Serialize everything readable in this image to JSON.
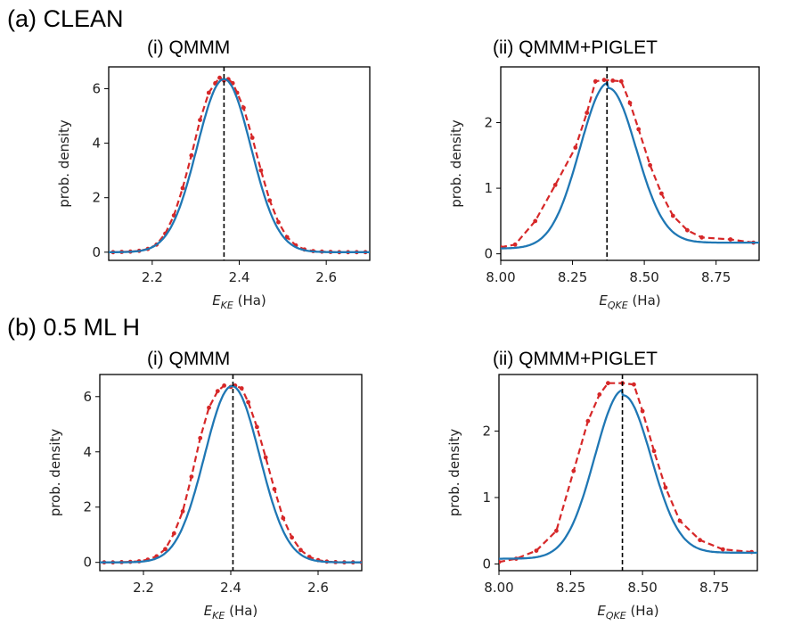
{
  "sections": [
    {
      "label": "(a) CLEAN"
    },
    {
      "label": "(b) 0.5 ML H"
    }
  ],
  "chart_data": [
    {
      "type": "line",
      "subtitle": "(i) QMMM",
      "xlabel_sym": "E",
      "xlabel_sub": "KE",
      "xlabel_unit": " (Ha)",
      "ylabel": "prob. density",
      "xlim": [
        2.1,
        2.7
      ],
      "ylim": [
        -0.3,
        6.8
      ],
      "xticks": [
        2.2,
        2.4,
        2.6
      ],
      "xtick_labels": [
        "2.2",
        "2.4",
        "2.6"
      ],
      "yticks": [
        0,
        2,
        4,
        6
      ],
      "ytick_labels": [
        "0",
        "2",
        "4",
        "6"
      ],
      "vline_x": 2.365,
      "series": [
        {
          "style": "dashed-red-markers",
          "color": "#d62728",
          "x": [
            2.11,
            2.13,
            2.15,
            2.17,
            2.19,
            2.21,
            2.23,
            2.25,
            2.27,
            2.29,
            2.31,
            2.33,
            2.345,
            2.355,
            2.365,
            2.375,
            2.385,
            2.395,
            2.41,
            2.43,
            2.45,
            2.47,
            2.49,
            2.51,
            2.53,
            2.55,
            2.57,
            2.59,
            2.61,
            2.63,
            2.65,
            2.67,
            2.69
          ],
          "y": [
            0.0,
            0.01,
            0.02,
            0.05,
            0.12,
            0.28,
            0.68,
            1.35,
            2.35,
            3.55,
            4.85,
            5.85,
            6.2,
            6.4,
            6.3,
            6.35,
            6.2,
            5.85,
            5.3,
            4.2,
            3.0,
            1.9,
            1.1,
            0.55,
            0.25,
            0.1,
            0.04,
            0.02,
            0.01,
            0.0,
            0.0,
            0.0,
            0.0
          ]
        },
        {
          "style": "solid-blue-fit",
          "color": "#1f77b4",
          "mu": 2.365,
          "sigma": 0.062,
          "amp": 6.35
        }
      ]
    },
    {
      "type": "line",
      "subtitle": "(ii) QMMM+PIGLET",
      "xlabel_sym": "E",
      "xlabel_sub": "QKE",
      "xlabel_unit": " (Ha)",
      "ylabel": "prob. density",
      "xlim": [
        8.0,
        8.9
      ],
      "ylim": [
        -0.1,
        2.85
      ],
      "xticks": [
        8.0,
        8.25,
        8.5,
        8.75
      ],
      "xtick_labels": [
        "8.00",
        "8.25",
        "8.50",
        "8.75"
      ],
      "yticks": [
        0,
        1,
        2
      ],
      "ytick_labels": [
        "0",
        "1",
        "2"
      ],
      "vline_x": 8.37,
      "series": [
        {
          "style": "dashed-red-markers",
          "color": "#d62728",
          "x": [
            8.0,
            8.05,
            8.12,
            8.19,
            8.26,
            8.3,
            8.33,
            8.36,
            8.39,
            8.42,
            8.45,
            8.48,
            8.52,
            8.56,
            8.6,
            8.65,
            8.7,
            8.8,
            8.88
          ],
          "y": [
            0.1,
            0.14,
            0.5,
            1.05,
            1.62,
            2.15,
            2.63,
            2.65,
            2.64,
            2.63,
            2.3,
            1.9,
            1.35,
            0.92,
            0.58,
            0.36,
            0.25,
            0.22,
            0.17
          ]
        },
        {
          "style": "solid-blue-fit",
          "color": "#1f77b4",
          "mu": 8.372,
          "sigma": 0.098,
          "amp": 2.44,
          "offset": 0.17
        }
      ]
    },
    {
      "type": "line",
      "subtitle": "(i) QMMM",
      "xlabel_sym": "E",
      "xlabel_sub": "KE",
      "xlabel_unit": " (Ha)",
      "ylabel": "prob. density",
      "xlim": [
        2.1,
        2.7
      ],
      "ylim": [
        -0.3,
        6.8
      ],
      "xticks": [
        2.2,
        2.4,
        2.6
      ],
      "xtick_labels": [
        "2.2",
        "2.4",
        "2.6"
      ],
      "yticks": [
        0,
        2,
        4,
        6
      ],
      "ytick_labels": [
        "0",
        "2",
        "4",
        "6"
      ],
      "vline_x": 2.405,
      "series": [
        {
          "style": "dashed-red-markers",
          "color": "#d62728",
          "x": [
            2.11,
            2.13,
            2.15,
            2.17,
            2.19,
            2.21,
            2.23,
            2.25,
            2.27,
            2.29,
            2.31,
            2.33,
            2.35,
            2.37,
            2.385,
            2.4,
            2.41,
            2.425,
            2.44,
            2.46,
            2.48,
            2.5,
            2.52,
            2.54,
            2.56,
            2.58,
            2.6,
            2.62,
            2.64,
            2.66,
            2.68,
            2.7
          ],
          "y": [
            0.0,
            0.0,
            0.01,
            0.02,
            0.04,
            0.1,
            0.22,
            0.48,
            1.05,
            1.85,
            3.1,
            4.5,
            5.6,
            6.2,
            6.4,
            6.35,
            6.4,
            6.3,
            5.8,
            4.9,
            3.8,
            2.65,
            1.6,
            0.9,
            0.45,
            0.2,
            0.08,
            0.03,
            0.01,
            0.0,
            0.0,
            0.0
          ]
        },
        {
          "style": "solid-blue-fit",
          "color": "#1f77b4",
          "mu": 2.403,
          "sigma": 0.063,
          "amp": 6.38
        }
      ]
    },
    {
      "type": "line",
      "subtitle": "(ii) QMMM+PIGLET",
      "xlabel_sym": "E",
      "xlabel_sub": "QKE",
      "xlabel_unit": " (Ha)",
      "ylabel": "prob. density",
      "xlim": [
        8.0,
        8.9
      ],
      "ylim": [
        -0.1,
        2.85
      ],
      "xticks": [
        8.0,
        8.25,
        8.5,
        8.75
      ],
      "xtick_labels": [
        "8.00",
        "8.25",
        "8.50",
        "8.75"
      ],
      "yticks": [
        0,
        1,
        2
      ],
      "ytick_labels": [
        "0",
        "1",
        "2"
      ],
      "vline_x": 8.43,
      "series": [
        {
          "style": "dashed-red-markers",
          "color": "#d62728",
          "x": [
            8.0,
            8.06,
            8.13,
            8.2,
            8.26,
            8.31,
            8.35,
            8.38,
            8.43,
            8.47,
            8.5,
            8.54,
            8.58,
            8.63,
            8.7,
            8.78,
            8.88
          ],
          "y": [
            0.03,
            0.08,
            0.2,
            0.5,
            1.4,
            2.15,
            2.55,
            2.72,
            2.72,
            2.7,
            2.3,
            1.7,
            1.15,
            0.65,
            0.36,
            0.22,
            0.18
          ]
        },
        {
          "style": "solid-blue-fit",
          "color": "#1f77b4",
          "mu": 8.43,
          "sigma": 0.098,
          "amp": 2.45,
          "offset": 0.17
        }
      ]
    }
  ]
}
